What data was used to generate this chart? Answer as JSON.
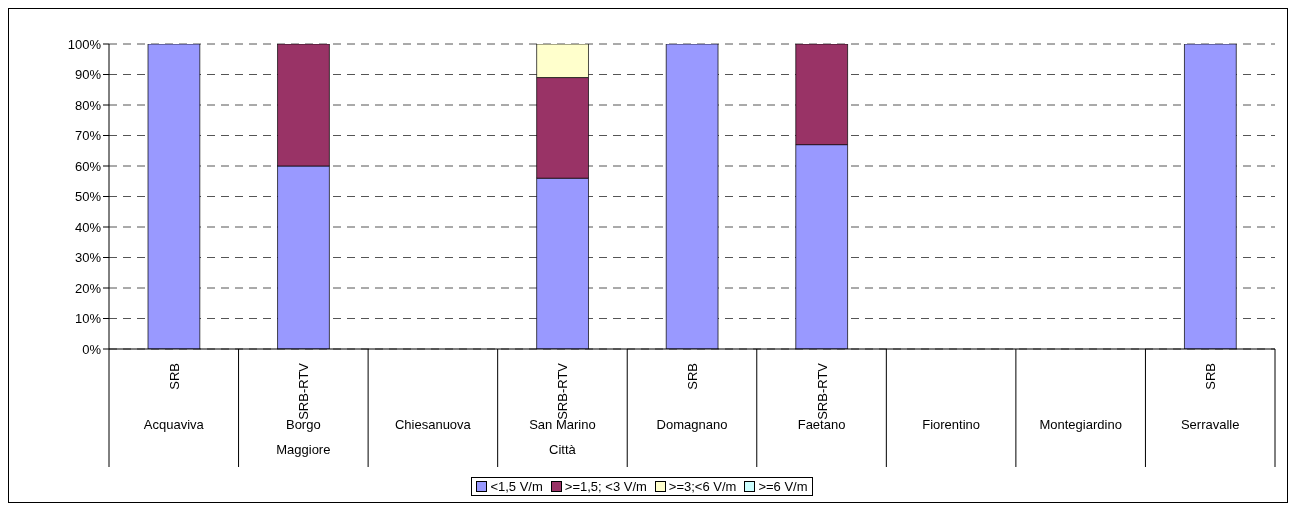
{
  "chart_data": {
    "type": "bar",
    "stacked": true,
    "categories": [
      "Acquaviva",
      "Borgo Maggiore",
      "Chiesanuova",
      "San Marino Città",
      "Domagnano",
      "Faetano",
      "Fiorentino",
      "Montegiardino",
      "Serravalle"
    ],
    "series": [
      {
        "name": "<1,5 V/m",
        "color": "#9999ff",
        "values": [
          100,
          60,
          null,
          56,
          100,
          67,
          null,
          null,
          100
        ]
      },
      {
        "name": ">=1,5; <3 V/m",
        "color": "#993366",
        "values": [
          0,
          40,
          null,
          33,
          0,
          33,
          null,
          null,
          0
        ]
      },
      {
        "name": ">=3;<6 V/m",
        "color": "#ffffcc",
        "values": [
          0,
          0,
          null,
          11,
          0,
          0,
          null,
          null,
          0
        ]
      },
      {
        "name": ">=6 V/m",
        "color": "#ccffff",
        "values": [
          0,
          0,
          null,
          0,
          0,
          0,
          null,
          null,
          0
        ]
      }
    ],
    "ylim": [
      0,
      100
    ],
    "yticks": [
      {
        "value": 0,
        "label": "0%"
      },
      {
        "value": 10,
        "label": "10%"
      },
      {
        "value": 20,
        "label": "20%"
      },
      {
        "value": 30,
        "label": "30%"
      },
      {
        "value": 40,
        "label": "40%"
      },
      {
        "value": 50,
        "label": "50%"
      },
      {
        "value": 60,
        "label": "60%"
      },
      {
        "value": 70,
        "label": "70%"
      },
      {
        "value": 80,
        "label": "80%"
      },
      {
        "value": 90,
        "label": "90%"
      },
      {
        "value": 100,
        "label": "100%"
      }
    ],
    "annotations": [
      "SRB",
      "SRB-RTV",
      "SRB-RTV",
      "SRB",
      "SRB-RTV",
      "SRB"
    ],
    "grid": "y",
    "legend": "bottom"
  }
}
